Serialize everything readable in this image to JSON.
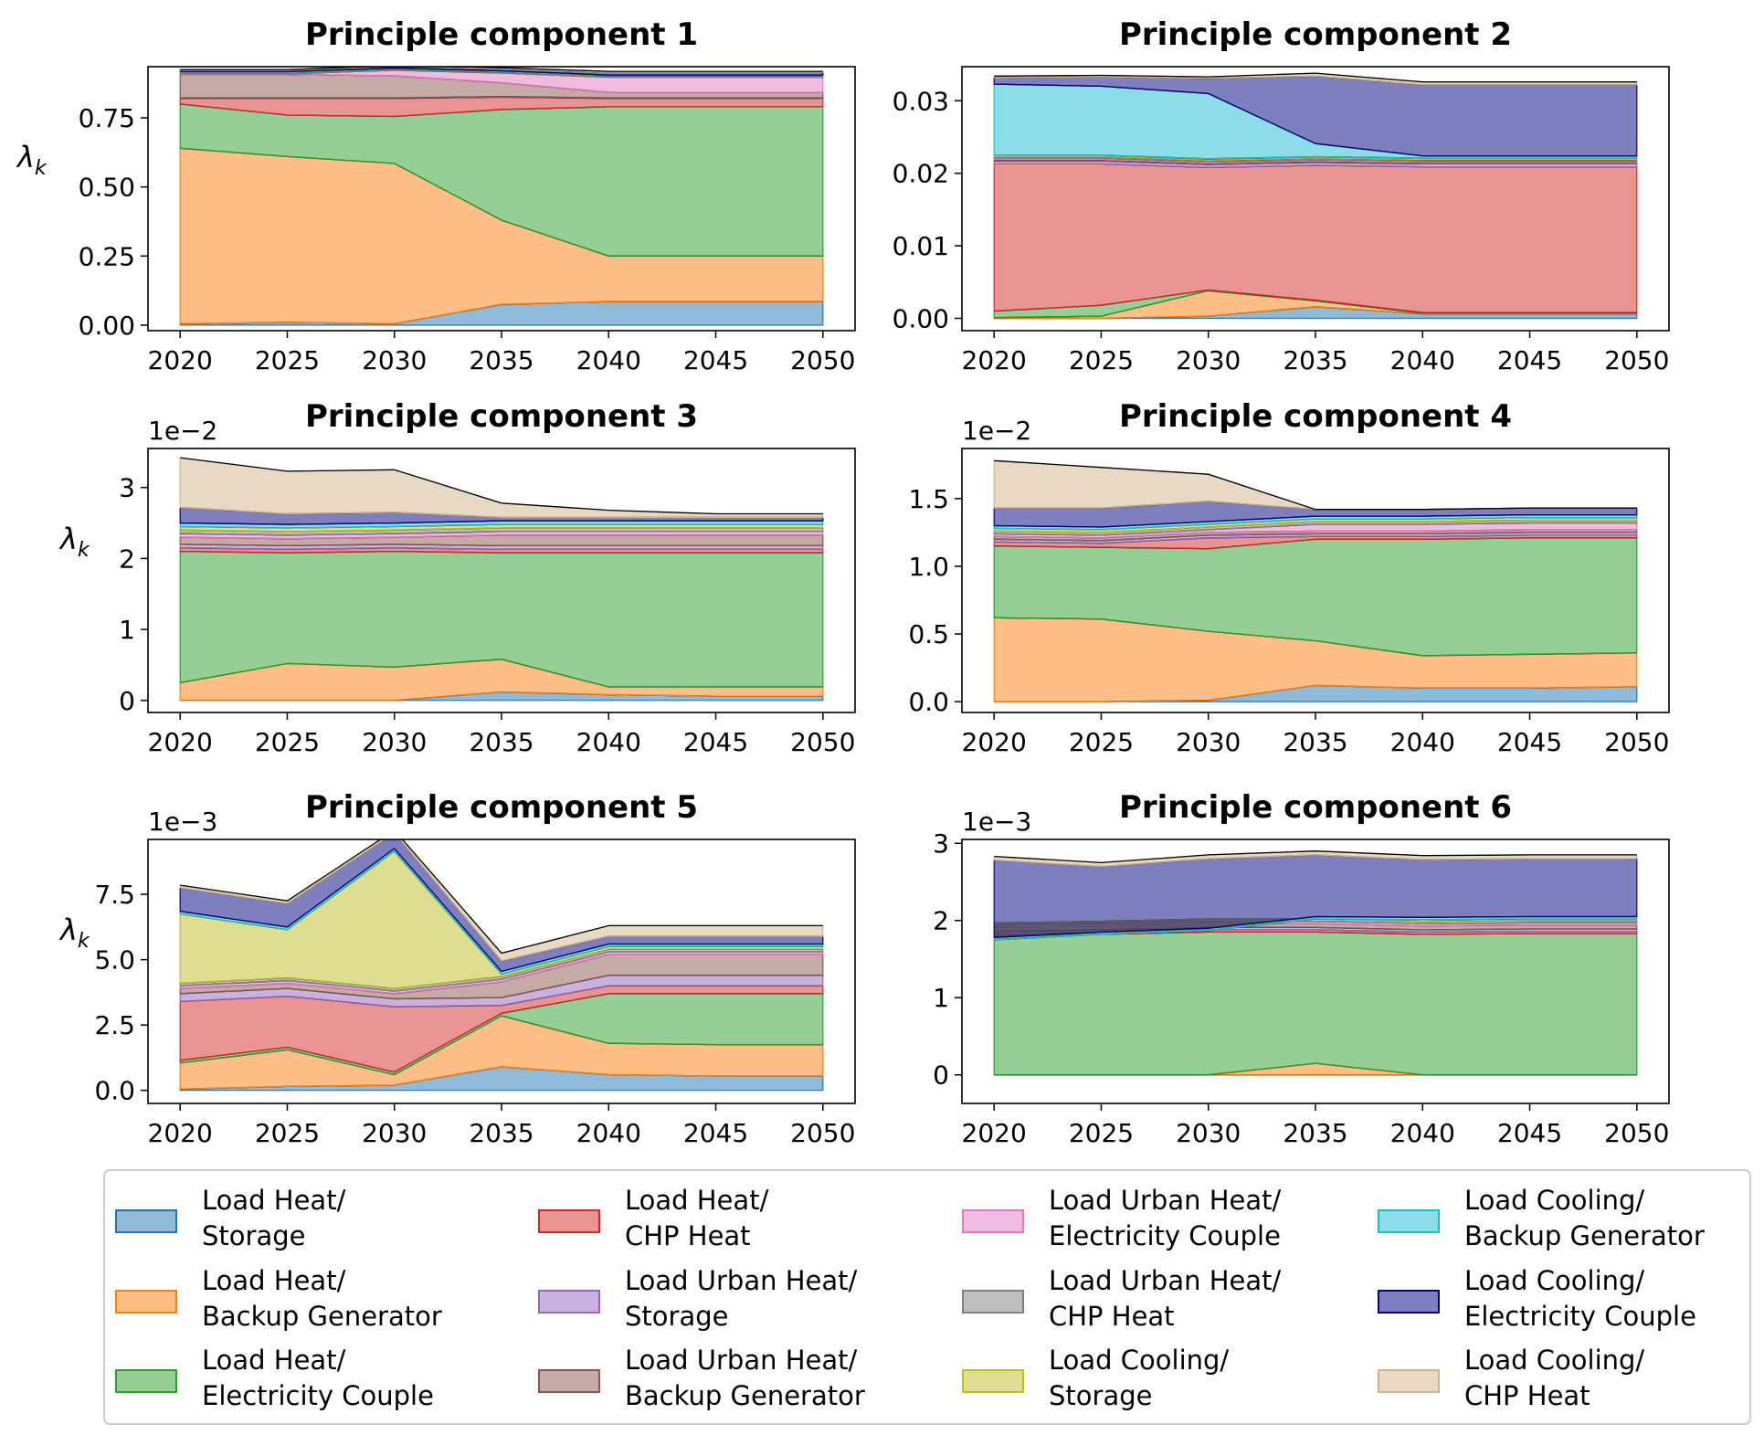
{
  "chart_data": {
    "type": "area",
    "x": [
      2020,
      2025,
      2030,
      2035,
      2040,
      2045,
      2050
    ],
    "ylabel": "λ",
    "ylabel_subscript": "k",
    "series_names": [
      [
        "Load Heat/",
        "Storage"
      ],
      [
        "Load Heat/",
        "Backup Generator"
      ],
      [
        "Load Heat/",
        "Electricity Couple"
      ],
      [
        "Load Heat/",
        "CHP Heat"
      ],
      [
        "Load Urban Heat/",
        "Storage"
      ],
      [
        "Load Urban Heat/",
        "Backup Generator"
      ],
      [
        "Load Urban Heat/",
        "Electricity Couple"
      ],
      [
        "Load Urban Heat/",
        "CHP Heat"
      ],
      [
        "Load Cooling/",
        "Storage"
      ],
      [
        "Load Cooling/",
        "Backup Generator"
      ],
      [
        "Load Cooling/",
        "Electricity Couple"
      ],
      [
        "Load Cooling/",
        "CHP Heat"
      ]
    ],
    "colors": [
      "#1f77b4",
      "#ff7f0e",
      "#2ca02c",
      "#d62728",
      "#9467bd",
      "#8c564b",
      "#e377c2",
      "#7f7f7f",
      "#bcbd22",
      "#17becf",
      "#000080",
      "#d2b48c"
    ],
    "panels": [
      {
        "title": "Principle component 1",
        "ylim": [
          -0.02,
          0.935
        ],
        "yticks": [
          0,
          0.25,
          0.5,
          0.75
        ],
        "ytick_labels": [
          "0.00",
          "0.25",
          "0.50",
          "0.75"
        ],
        "show_ylabel": true,
        "exponent": "",
        "values": [
          [
            0.005,
            0.01,
            0.005,
            0.075,
            0.085,
            0.085,
            0.085
          ],
          [
            0.635,
            0.6,
            0.58,
            0.305,
            0.165,
            0.165,
            0.165
          ],
          [
            0.16,
            0.15,
            0.17,
            0.4,
            0.54,
            0.54,
            0.54
          ],
          [
            0.02,
            0.06,
            0.065,
            0.045,
            0.03,
            0.03,
            0.03
          ],
          [
            0.002,
            0.002,
            0.002,
            0.002,
            0.002,
            0.002,
            0.002
          ],
          [
            0.085,
            0.085,
            0.08,
            0.05,
            0.02,
            0.02,
            0.02
          ],
          [
            0.002,
            0.002,
            0.02,
            0.035,
            0.055,
            0.055,
            0.055
          ],
          [
            0.004,
            0.004,
            0.004,
            0.004,
            0.004,
            0.004,
            0.004
          ],
          [
            0.002,
            0.002,
            0.002,
            0.002,
            0.002,
            0.002,
            0.002
          ],
          [
            0.002,
            0.002,
            0.002,
            0.002,
            0.002,
            0.002,
            0.002
          ],
          [
            0.004,
            0.004,
            0.006,
            0.008,
            0.01,
            0.01,
            0.01
          ],
          [
            0.003,
            0.003,
            0.003,
            0.003,
            0.003,
            0.003,
            0.003
          ]
        ]
      },
      {
        "title": "Principle component 2",
        "ylim": [
          -0.0017,
          0.0347
        ],
        "yticks": [
          0,
          0.01,
          0.02,
          0.03
        ],
        "ytick_labels": [
          "0.00",
          "0.01",
          "0.02",
          "0.03"
        ],
        "show_ylabel": false,
        "exponent": "",
        "values": [
          [
            0,
            0,
            0.0003,
            0.0016,
            0.0006,
            0.0006,
            0.0006
          ],
          [
            0.0001,
            0.0003,
            0.0035,
            0.0008,
            0.0001,
            0.0001,
            0.0001
          ],
          [
            0.0009,
            0.0015,
            0.0001,
            0.0001,
            0.0001,
            0.0001,
            0.0001
          ],
          [
            0.0203,
            0.0195,
            0.0169,
            0.0186,
            0.0201,
            0.0201,
            0.0201
          ],
          [
            0.0004,
            0.0004,
            0.0004,
            0.0004,
            0.0004,
            0.0004,
            0.0004
          ],
          [
            0.0002,
            0.0002,
            0.0002,
            0.0002,
            0.0002,
            0.0002,
            0.0002
          ],
          [
            0.0002,
            0.0002,
            0.0002,
            0.0002,
            0.0002,
            0.0002,
            0.0002
          ],
          [
            0.0002,
            0.0002,
            0.0002,
            0.0002,
            0.0002,
            0.0002,
            0.0002
          ],
          [
            0.0002,
            0.0002,
            0.0002,
            0.0002,
            0.0002,
            0.0002,
            0.0002
          ],
          [
            0.0098,
            0.0095,
            0.009,
            0.0018,
            0.0003,
            0.0003,
            0.0003
          ],
          [
            0.0009,
            0.0013,
            0.0021,
            0.0093,
            0.0098,
            0.0098,
            0.0098
          ],
          [
            0.0002,
            0.0002,
            0.0002,
            0.0004,
            0.0004,
            0.0004,
            0.0004
          ]
        ]
      },
      {
        "title": "Principle component 3",
        "ylim": [
          -0.17,
          3.55
        ],
        "yticks": [
          0,
          1,
          2,
          3
        ],
        "ytick_labels": [
          "0",
          "1",
          "2",
          "3"
        ],
        "show_ylabel": true,
        "exponent": "1e−2",
        "values": [
          [
            0.0,
            0.0,
            0.0,
            0.12,
            0.08,
            0.06,
            0.06
          ],
          [
            0.25,
            0.52,
            0.47,
            0.46,
            0.11,
            0.13,
            0.13
          ],
          [
            1.85,
            1.56,
            1.63,
            1.5,
            1.89,
            1.89,
            1.89
          ],
          [
            0.05,
            0.05,
            0.05,
            0.05,
            0.05,
            0.05,
            0.05
          ],
          [
            0.05,
            0.05,
            0.05,
            0.05,
            0.05,
            0.05,
            0.05
          ],
          [
            0.1,
            0.1,
            0.1,
            0.15,
            0.15,
            0.15,
            0.15
          ],
          [
            0.05,
            0.05,
            0.05,
            0.05,
            0.05,
            0.05,
            0.05
          ],
          [
            0.05,
            0.05,
            0.05,
            0.05,
            0.05,
            0.05,
            0.05
          ],
          [
            0.05,
            0.05,
            0.05,
            0.05,
            0.05,
            0.05,
            0.05
          ],
          [
            0.05,
            0.05,
            0.05,
            0.05,
            0.05,
            0.05,
            0.05
          ],
          [
            0.22,
            0.15,
            0.15,
            0.05,
            0.05,
            0.05,
            0.05
          ],
          [
            0.7,
            0.6,
            0.6,
            0.2,
            0.1,
            0.05,
            0.05
          ]
        ]
      },
      {
        "title": "Principle component 4",
        "ylim": [
          -0.08,
          1.87
        ],
        "yticks": [
          0,
          0.5,
          1.0,
          1.5
        ],
        "ytick_labels": [
          "0.0",
          "0.5",
          "1.0",
          "1.5"
        ],
        "show_ylabel": false,
        "exponent": "1e−2",
        "values": [
          [
            0.0,
            0.0,
            0.01,
            0.12,
            0.1,
            0.1,
            0.11
          ],
          [
            0.62,
            0.61,
            0.51,
            0.33,
            0.24,
            0.25,
            0.25
          ],
          [
            0.53,
            0.53,
            0.61,
            0.75,
            0.86,
            0.86,
            0.85
          ],
          [
            0.03,
            0.03,
            0.08,
            0.02,
            0.02,
            0.02,
            0.02
          ],
          [
            0.02,
            0.02,
            0.02,
            0.02,
            0.02,
            0.02,
            0.02
          ],
          [
            0.02,
            0.02,
            0.02,
            0.02,
            0.02,
            0.02,
            0.02
          ],
          [
            0.02,
            0.02,
            0.02,
            0.05,
            0.05,
            0.05,
            0.05
          ],
          [
            0.02,
            0.02,
            0.02,
            0.02,
            0.02,
            0.02,
            0.02
          ],
          [
            0.02,
            0.02,
            0.02,
            0.02,
            0.02,
            0.02,
            0.02
          ],
          [
            0.02,
            0.02,
            0.02,
            0.02,
            0.02,
            0.02,
            0.02
          ],
          [
            0.13,
            0.14,
            0.15,
            0.05,
            0.05,
            0.05,
            0.05
          ],
          [
            0.35,
            0.3,
            0.2,
            0.0,
            0.0,
            0.0,
            0.0
          ]
        ]
      },
      {
        "title": "Principle component 5",
        "ylim": [
          -0.5,
          9.6
        ],
        "yticks": [
          0,
          2.5,
          5.0,
          7.5
        ],
        "ytick_labels": [
          "0.0",
          "2.5",
          "5.0",
          "7.5"
        ],
        "show_ylabel": true,
        "exponent": "1e−3",
        "values": [
          [
            0.05,
            0.15,
            0.2,
            0.9,
            0.6,
            0.55,
            0.55
          ],
          [
            1.0,
            1.4,
            0.4,
            1.95,
            1.2,
            1.2,
            1.2
          ],
          [
            0.1,
            0.1,
            0.1,
            0.1,
            1.9,
            1.95,
            1.95
          ],
          [
            2.25,
            1.95,
            2.5,
            0.3,
            0.3,
            0.3,
            0.3
          ],
          [
            0.3,
            0.3,
            0.3,
            0.3,
            0.4,
            0.4,
            0.4
          ],
          [
            0.2,
            0.2,
            0.2,
            0.6,
            0.8,
            0.8,
            0.8
          ],
          [
            0.1,
            0.1,
            0.1,
            0.1,
            0.1,
            0.1,
            0.1
          ],
          [
            0.1,
            0.1,
            0.1,
            0.1,
            0.1,
            0.1,
            0.1
          ],
          [
            2.65,
            1.85,
            5.25,
            0.1,
            0.1,
            0.1,
            0.1
          ],
          [
            0.1,
            0.1,
            0.1,
            0.1,
            0.1,
            0.1,
            0.1
          ],
          [
            0.9,
            0.9,
            0.6,
            0.4,
            0.3,
            0.3,
            0.3
          ],
          [
            0.1,
            0.1,
            0.1,
            0.3,
            0.4,
            0.4,
            0.4
          ]
        ]
      },
      {
        "title": "Principle component 6",
        "ylim": [
          -0.37,
          3.05
        ],
        "yticks": [
          0,
          1,
          2,
          3
        ],
        "ytick_labels": [
          "0",
          "1",
          "2",
          "3"
        ],
        "show_ylabel": false,
        "exponent": "1e−3",
        "values": [
          [
            0.0,
            0.0,
            0.0,
            0.0,
            0.0,
            0.0,
            0.0
          ],
          [
            0.0,
            0.0,
            0.0,
            0.15,
            0.0,
            0.0,
            0.0
          ],
          [
            1.8,
            1.82,
            1.85,
            1.7,
            1.82,
            1.83,
            1.83
          ],
          [
            0.03,
            0.03,
            0.03,
            0.03,
            0.03,
            0.03,
            0.03
          ],
          [
            0.03,
            0.03,
            0.03,
            0.03,
            0.03,
            0.03,
            0.03
          ],
          [
            0.05,
            0.05,
            0.05,
            0.05,
            0.05,
            0.05,
            0.05
          ],
          [
            0.03,
            0.03,
            0.03,
            0.03,
            0.03,
            0.03,
            0.03
          ],
          [
            0.03,
            0.03,
            0.03,
            0.03,
            0.03,
            0.03,
            0.03
          ],
          [
            -0.22,
            -0.17,
            -0.15,
            0.0,
            0.02,
            0.02,
            0.02
          ],
          [
            0.03,
            0.03,
            0.03,
            0.03,
            0.03,
            0.03,
            0.03
          ],
          [
            1.0,
            0.85,
            0.9,
            0.8,
            0.75,
            0.75,
            0.75
          ],
          [
            0.05,
            0.05,
            0.05,
            0.05,
            0.05,
            0.05,
            0.05
          ]
        ]
      }
    ]
  }
}
